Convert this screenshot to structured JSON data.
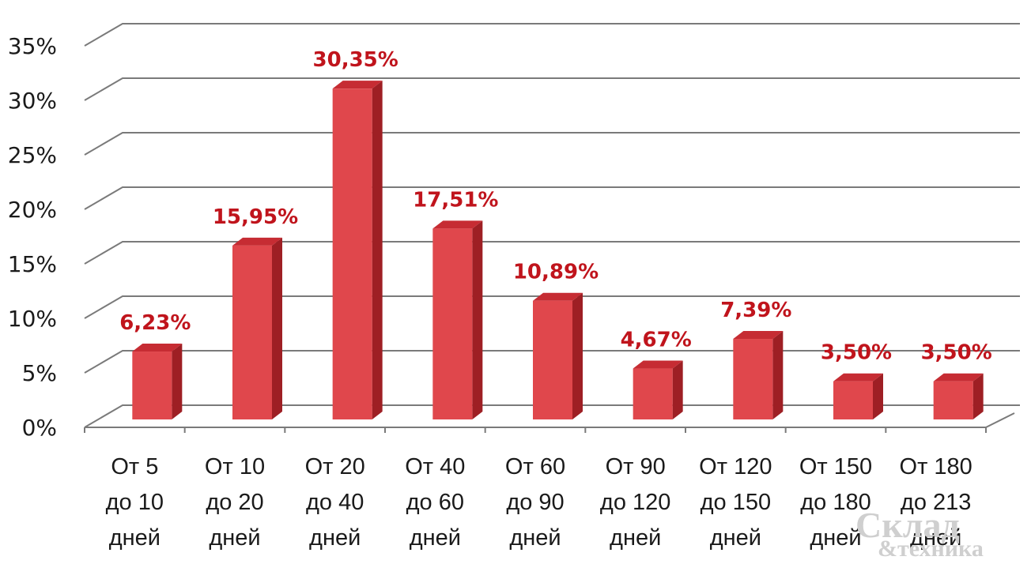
{
  "chart_data": {
    "type": "bar",
    "style": "3d-column",
    "title": "",
    "xlabel": "",
    "ylabel": "",
    "ylim": [
      0,
      35
    ],
    "y_ticks": [
      "0%",
      "5%",
      "10%",
      "15%",
      "20%",
      "25%",
      "30%",
      "35%"
    ],
    "grid": true,
    "legend": "none",
    "categories": [
      [
        "От 5",
        "до 10",
        "дней"
      ],
      [
        "От 10",
        "до 20",
        "дней"
      ],
      [
        "От 20",
        "до 40",
        "дней"
      ],
      [
        "От 40",
        "до 60",
        "дней"
      ],
      [
        "От 60",
        "до 90",
        "дней"
      ],
      [
        "От 90",
        "до 120",
        "дней"
      ],
      [
        "От 120",
        "до 150",
        "дней"
      ],
      [
        "От 150",
        "до 180",
        "дней"
      ],
      [
        "От 180",
        "до 213",
        "дней"
      ]
    ],
    "values": [
      6.23,
      15.95,
      30.35,
      17.51,
      10.89,
      4.67,
      7.39,
      3.5,
      3.5
    ],
    "data_labels": [
      "6,23%",
      "15,95%",
      "30,35%",
      "17,51%",
      "10,89%",
      "4,67%",
      "7,39%",
      "3,50%",
      "3,50%"
    ],
    "colors": {
      "bar_front": "#e0474c",
      "bar_side": "#9e1f24",
      "bar_top": "#c62c33",
      "label": "#c0141c",
      "grid": "#7a7a7a"
    }
  },
  "watermark": {
    "line1": "Склад",
    "line2": "&техника"
  }
}
